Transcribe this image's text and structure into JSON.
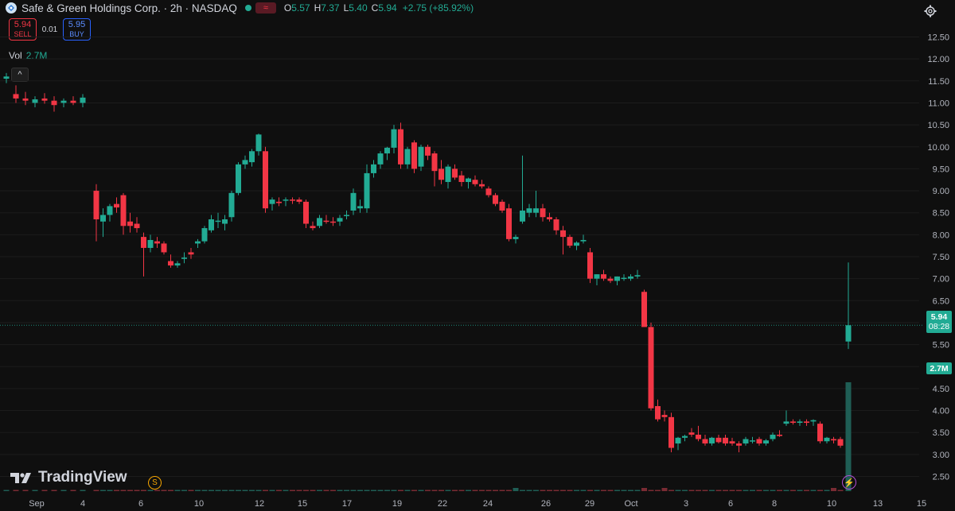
{
  "header": {
    "title": "Safe & Green Holdings Corp. · 2h · NASDAQ",
    "wave_symbol": "≈",
    "ohlc": {
      "o_label": "O",
      "o": "5.57",
      "h_label": "H",
      "h": "7.37",
      "l_label": "L",
      "l": "5.40",
      "c_label": "C",
      "c": "5.94",
      "change": "+2.75 (+85.92%)"
    }
  },
  "trade": {
    "sell_price": "5.94",
    "sell_label": "SELL",
    "spread": "0.01",
    "buy_price": "5.95",
    "buy_label": "BUY"
  },
  "volume": {
    "label": "Vol",
    "value": "2.7M"
  },
  "collapse_symbol": "^",
  "last_price_tag": {
    "price": "5.94",
    "countdown": "08:28"
  },
  "volume_tag": "2.7M",
  "brand": "TradingView",
  "events": {
    "split_badge": "S",
    "bolt_badge": "⚡"
  },
  "colors": {
    "up": "#22ab94",
    "down": "#f23645",
    "background": "#0f0f0f"
  },
  "chart_data": {
    "type": "candlestick",
    "title": "Safe & Green Holdings Corp. · 2h · NASDAQ",
    "y_ticks": [
      "12.50",
      "12.00",
      "11.50",
      "11.00",
      "10.50",
      "10.00",
      "9.50",
      "9.00",
      "8.50",
      "8.00",
      "7.50",
      "7.00",
      "6.50",
      "6.00",
      "5.50",
      "5.00",
      "4.50",
      "4.00",
      "3.50",
      "3.00",
      "2.50"
    ],
    "x_ticks": [
      "Sep",
      "4",
      "6",
      "10",
      "12",
      "15",
      "17",
      "19",
      "22",
      "24",
      "26",
      "29",
      "Oct",
      "3",
      "6",
      "8",
      "10",
      "13",
      "15"
    ],
    "ylim": [
      2.25,
      12.75
    ],
    "last_price": 5.94,
    "candles": [
      [
        11.55,
        11.68,
        11.45,
        11.6
      ],
      [
        11.2,
        11.4,
        11.0,
        11.1
      ],
      [
        11.1,
        11.25,
        10.95,
        11.05
      ],
      [
        11.0,
        11.15,
        10.9,
        11.08
      ],
      [
        11.1,
        11.22,
        10.98,
        11.05
      ],
      [
        11.05,
        11.15,
        10.8,
        10.95
      ],
      [
        11.0,
        11.1,
        10.9,
        11.05
      ],
      [
        11.05,
        11.15,
        10.95,
        11.0
      ],
      [
        11.0,
        11.2,
        10.9,
        11.12
      ],
      [
        9.0,
        9.15,
        7.85,
        8.35
      ],
      [
        8.3,
        8.6,
        7.95,
        8.45
      ],
      [
        8.45,
        8.7,
        8.3,
        8.65
      ],
      [
        8.7,
        8.85,
        8.5,
        8.62
      ],
      [
        8.9,
        8.95,
        8.0,
        8.2
      ],
      [
        8.3,
        8.5,
        8.05,
        8.2
      ],
      [
        8.25,
        8.4,
        8.05,
        8.15
      ],
      [
        7.95,
        8.05,
        7.05,
        7.7
      ],
      [
        7.7,
        8.0,
        7.6,
        7.88
      ],
      [
        7.85,
        7.95,
        7.7,
        7.8
      ],
      [
        7.8,
        7.85,
        7.55,
        7.6
      ],
      [
        7.4,
        7.55,
        7.25,
        7.3
      ],
      [
        7.3,
        7.4,
        7.25,
        7.35
      ],
      [
        7.45,
        7.6,
        7.35,
        7.48
      ],
      [
        7.6,
        7.7,
        7.45,
        7.55
      ],
      [
        7.8,
        7.9,
        7.7,
        7.85
      ],
      [
        7.85,
        8.2,
        7.8,
        8.15
      ],
      [
        8.1,
        8.45,
        8.05,
        8.35
      ],
      [
        8.3,
        8.5,
        8.15,
        8.32
      ],
      [
        8.25,
        8.45,
        8.1,
        8.35
      ],
      [
        8.4,
        9.0,
        8.3,
        8.95
      ],
      [
        8.95,
        9.65,
        8.9,
        9.6
      ],
      [
        9.6,
        9.8,
        9.5,
        9.7
      ],
      [
        9.65,
        9.95,
        9.55,
        9.9
      ],
      [
        9.9,
        10.3,
        9.8,
        10.28
      ],
      [
        9.9,
        10.0,
        8.5,
        8.6
      ],
      [
        8.7,
        8.85,
        8.55,
        8.8
      ],
      [
        8.75,
        8.85,
        8.65,
        8.72
      ],
      [
        8.78,
        8.85,
        8.65,
        8.8
      ],
      [
        8.8,
        8.85,
        8.7,
        8.78
      ],
      [
        8.8,
        8.85,
        8.7,
        8.75
      ],
      [
        8.75,
        8.8,
        8.15,
        8.25
      ],
      [
        8.2,
        8.3,
        8.1,
        8.15
      ],
      [
        8.2,
        8.45,
        8.15,
        8.38
      ],
      [
        8.32,
        8.45,
        8.25,
        8.3
      ],
      [
        8.3,
        8.4,
        8.2,
        8.28
      ],
      [
        8.3,
        8.45,
        8.2,
        8.38
      ],
      [
        8.45,
        8.55,
        8.35,
        8.45
      ],
      [
        8.55,
        9.05,
        8.45,
        8.95
      ],
      [
        8.6,
        8.8,
        8.5,
        8.65
      ],
      [
        8.6,
        9.6,
        8.5,
        9.4
      ],
      [
        9.4,
        9.7,
        9.3,
        9.6
      ],
      [
        9.6,
        9.9,
        9.5,
        9.85
      ],
      [
        9.85,
        10.0,
        9.7,
        9.98
      ],
      [
        9.98,
        10.5,
        9.85,
        10.4
      ],
      [
        10.4,
        10.55,
        9.5,
        9.6
      ],
      [
        9.6,
        10.0,
        9.5,
        9.95
      ],
      [
        10.1,
        10.15,
        9.4,
        9.5
      ],
      [
        9.55,
        10.05,
        9.45,
        10.0
      ],
      [
        10.0,
        10.05,
        9.7,
        9.8
      ],
      [
        9.85,
        9.9,
        9.1,
        9.45
      ],
      [
        9.5,
        9.7,
        9.15,
        9.25
      ],
      [
        9.2,
        9.6,
        9.05,
        9.55
      ],
      [
        9.5,
        9.6,
        9.25,
        9.3
      ],
      [
        9.35,
        9.45,
        9.1,
        9.2
      ],
      [
        9.2,
        9.3,
        9.05,
        9.28
      ],
      [
        9.25,
        9.35,
        9.1,
        9.15
      ],
      [
        9.15,
        9.25,
        9.05,
        9.1
      ],
      [
        9.05,
        9.1,
        8.85,
        8.9
      ],
      [
        8.9,
        8.95,
        8.65,
        8.7
      ],
      [
        8.75,
        8.8,
        8.5,
        8.55
      ],
      [
        8.6,
        8.7,
        7.85,
        7.9
      ],
      [
        7.9,
        8.0,
        7.8,
        7.95
      ],
      [
        8.3,
        9.8,
        8.25,
        8.55
      ],
      [
        8.5,
        8.7,
        8.4,
        8.6
      ],
      [
        8.5,
        9.0,
        8.4,
        8.6
      ],
      [
        8.6,
        8.7,
        8.3,
        8.4
      ],
      [
        8.4,
        8.5,
        8.3,
        8.35
      ],
      [
        8.35,
        8.4,
        8.0,
        8.1
      ],
      [
        8.1,
        8.2,
        7.55,
        7.95
      ],
      [
        7.95,
        8.0,
        7.7,
        7.75
      ],
      [
        7.75,
        7.85,
        7.65,
        7.82
      ],
      [
        7.85,
        8.0,
        7.8,
        7.88
      ],
      [
        7.6,
        7.7,
        6.9,
        7.0
      ],
      [
        7.0,
        7.1,
        6.85,
        7.1
      ],
      [
        7.1,
        7.2,
        6.95,
        7.0
      ],
      [
        7.0,
        7.05,
        6.9,
        6.95
      ],
      [
        6.95,
        7.05,
        6.85,
        7.05
      ],
      [
        7.0,
        7.1,
        6.95,
        7.02
      ],
      [
        7.0,
        7.1,
        6.95,
        7.05
      ],
      [
        7.05,
        7.2,
        7.0,
        7.08
      ],
      [
        6.7,
        6.75,
        5.95,
        5.9
      ],
      [
        5.9,
        6.0,
        4.0,
        4.05
      ],
      [
        4.1,
        4.25,
        3.75,
        3.8
      ],
      [
        3.9,
        4.0,
        3.75,
        3.85
      ],
      [
        3.85,
        3.95,
        3.05,
        3.15
      ],
      [
        3.25,
        3.4,
        3.1,
        3.38
      ],
      [
        3.38,
        3.45,
        3.3,
        3.42
      ],
      [
        3.5,
        3.6,
        3.4,
        3.45
      ],
      [
        3.45,
        3.65,
        3.3,
        3.35
      ],
      [
        3.35,
        3.45,
        3.2,
        3.25
      ],
      [
        3.25,
        3.4,
        3.2,
        3.38
      ],
      [
        3.38,
        3.45,
        3.25,
        3.28
      ],
      [
        3.38,
        3.45,
        3.2,
        3.25
      ],
      [
        3.3,
        3.38,
        3.2,
        3.25
      ],
      [
        3.25,
        3.3,
        3.05,
        3.2
      ],
      [
        3.25,
        3.4,
        3.2,
        3.35
      ],
      [
        3.3,
        3.4,
        3.25,
        3.32
      ],
      [
        3.35,
        3.4,
        3.2,
        3.25
      ],
      [
        3.25,
        3.35,
        3.2,
        3.32
      ],
      [
        3.35,
        3.5,
        3.3,
        3.45
      ],
      [
        3.45,
        3.55,
        3.4,
        3.42
      ],
      [
        3.7,
        4.0,
        3.65,
        3.75
      ],
      [
        3.75,
        3.8,
        3.68,
        3.72
      ],
      [
        3.72,
        3.8,
        3.65,
        3.75
      ],
      [
        3.75,
        3.8,
        3.65,
        3.72
      ],
      [
        3.75,
        3.8,
        3.65,
        3.78
      ],
      [
        3.7,
        3.75,
        3.25,
        3.3
      ],
      [
        3.3,
        3.4,
        3.25,
        3.38
      ],
      [
        3.35,
        3.4,
        3.25,
        3.32
      ],
      [
        3.35,
        3.4,
        3.15,
        3.2
      ],
      [
        5.57,
        7.37,
        5.4,
        5.94
      ]
    ],
    "volume_last": "2.7M"
  }
}
